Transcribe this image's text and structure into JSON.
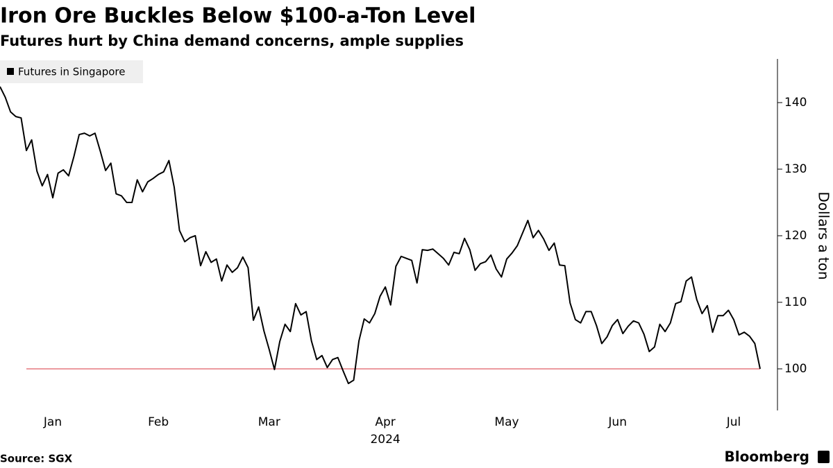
{
  "chart_data": {
    "type": "line",
    "title": "Iron Ore Buckles Below $100-a-Ton Level",
    "subtitle": "Futures hurt by China demand concerns, ample supplies",
    "y_label": "Dollars a ton",
    "x_label": "2024",
    "source": "Source: SGX",
    "logo": "Bloomberg",
    "categories": [
      null,
      null,
      null,
      null,
      null,
      null,
      null,
      null,
      null,
      null,
      "Jan",
      null,
      null,
      null,
      null,
      null,
      null,
      null,
      null,
      null,
      null,
      null,
      null,
      null,
      null,
      null,
      null,
      null,
      null,
      null,
      "Feb",
      null,
      null,
      null,
      null,
      null,
      null,
      null,
      null,
      null,
      null,
      null,
      null,
      null,
      null,
      null,
      null,
      null,
      null,
      null,
      null,
      "Mar",
      null,
      null,
      null,
      null,
      null,
      null,
      null,
      null,
      null,
      null,
      null,
      null,
      null,
      null,
      null,
      null,
      null,
      null,
      null,
      null,
      null,
      "Apr",
      null,
      null,
      null,
      null,
      null,
      null,
      null,
      null,
      null,
      null,
      null,
      null,
      null,
      null,
      null,
      null,
      null,
      null,
      null,
      null,
      null,
      null,
      "May",
      null,
      null,
      null,
      null,
      null,
      null,
      null,
      null,
      null,
      null,
      null,
      null,
      null,
      null,
      null,
      null,
      null,
      null,
      null,
      null,
      "Jun",
      null,
      null,
      null,
      null,
      null,
      null,
      null,
      null,
      null,
      null,
      null,
      null,
      null,
      null,
      null,
      null,
      null,
      null,
      null,
      null,
      null,
      "Jul",
      null,
      null,
      null,
      null,
      null
    ],
    "series": [
      {
        "name": "Futures in Singapore",
        "color": "#000000",
        "values": [
          142.4,
          140.8,
          138.6,
          137.9,
          137.7,
          132.8,
          134.4,
          129.7,
          127.5,
          129.2,
          125.7,
          129.4,
          129.9,
          129.0,
          131.9,
          135.2,
          135.4,
          135.0,
          135.4,
          132.7,
          129.8,
          130.9,
          126.3,
          126.0,
          125.0,
          125.0,
          128.4,
          126.6,
          128.1,
          128.6,
          129.2,
          129.6,
          131.3,
          127.3,
          120.8,
          119.1,
          119.7,
          120.0,
          115.5,
          117.6,
          116.0,
          116.5,
          113.2,
          115.6,
          114.5,
          115.2,
          116.8,
          115.2,
          107.3,
          109.3,
          105.7,
          102.9,
          99.9,
          104.1,
          106.7,
          105.6,
          109.8,
          108.1,
          108.6,
          104.2,
          101.4,
          102.0,
          100.2,
          101.4,
          101.7,
          99.7,
          97.8,
          98.3,
          104.2,
          107.5,
          106.9,
          108.3,
          110.9,
          112.3,
          109.6,
          115.4,
          116.9,
          116.6,
          116.3,
          112.9,
          117.9,
          117.8,
          118.0,
          117.3,
          116.6,
          115.6,
          117.5,
          117.3,
          119.6,
          117.9,
          114.8,
          115.8,
          116.1,
          117.1,
          115.0,
          113.8,
          116.5,
          117.4,
          118.5,
          120.4,
          122.3,
          119.7,
          120.8,
          119.5,
          117.8,
          118.9,
          115.6,
          115.5,
          109.9,
          107.4,
          106.9,
          108.6,
          108.6,
          106.5,
          103.8,
          104.8,
          106.5,
          107.4,
          105.3,
          106.4,
          107.2,
          106.9,
          105.2,
          102.6,
          103.3,
          106.7,
          105.6,
          106.9,
          109.8,
          110.1,
          113.2,
          113.8,
          110.4,
          108.3,
          109.5,
          105.5,
          108.0,
          108.0,
          108.8,
          107.4,
          105.1,
          105.5,
          104.9,
          103.8,
          100.0
        ]
      }
    ],
    "reference_line": {
      "value": 100,
      "color": "#d9363e"
    },
    "ylim": [
      93.75,
      146.56
    ],
    "yticks": [
      100,
      110,
      120,
      130,
      140
    ],
    "y_axis_side": "right",
    "legend": "top-left"
  }
}
